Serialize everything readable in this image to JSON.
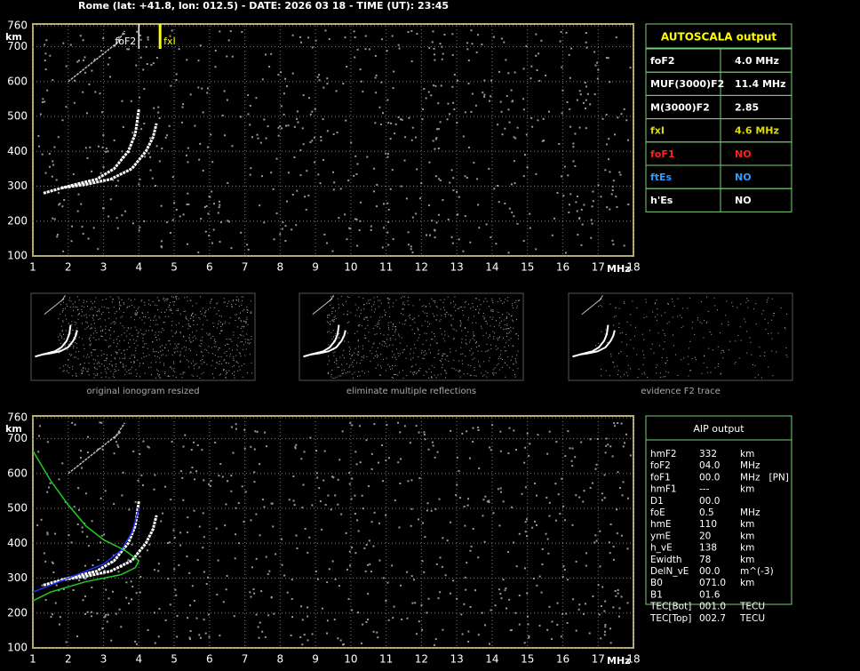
{
  "header": "Rome (lat: +41.8, lon: 012.5) - DATE: 2026 03 18 - TIME (UT): 23:45",
  "plots": [
    {
      "xlim": [
        1,
        18
      ],
      "ylim": [
        100,
        760
      ],
      "xticks": [
        1,
        2,
        3,
        4,
        5,
        6,
        7,
        8,
        9,
        10,
        11,
        12,
        13,
        14,
        15,
        16,
        17,
        18
      ],
      "yticks": [
        100,
        200,
        300,
        400,
        500,
        600,
        700,
        760
      ],
      "y_label": "km",
      "x_label": "MHz",
      "markers": [
        {
          "label": "foF2",
          "x": 4.0,
          "color": "#ffffff"
        },
        {
          "label": "fxI",
          "x": 4.6,
          "color": "#ffff00"
        }
      ],
      "traces": [
        {
          "color": "#ffffff",
          "x": [
            1.3,
            2,
            2.8,
            3.3,
            3.7,
            3.9,
            4.0
          ],
          "y": [
            280,
            300,
            320,
            350,
            400,
            450,
            520
          ]
        },
        {
          "color": "#ffffff",
          "x": [
            1.8,
            2.5,
            3.2,
            3.8,
            4.2,
            4.4,
            4.5
          ],
          "y": [
            295,
            305,
            320,
            350,
            400,
            440,
            480
          ]
        },
        {
          "color": "#bbbbbb",
          "x": [
            2,
            2.5,
            3,
            3.5
          ],
          "y": [
            600,
            640,
            680,
            720
          ]
        },
        {
          "color": "#bbbbbb",
          "x": [
            3.3,
            3.6
          ],
          "y": [
            700,
            745
          ]
        }
      ]
    },
    {
      "xlim": [
        1,
        18
      ],
      "ylim": [
        100,
        760
      ],
      "xticks": [
        1,
        2,
        3,
        4,
        5,
        6,
        7,
        8,
        9,
        10,
        11,
        12,
        13,
        14,
        15,
        16,
        17,
        18
      ],
      "yticks": [
        100,
        200,
        300,
        400,
        500,
        600,
        700,
        760
      ],
      "y_label": "km",
      "x_label": "MHz",
      "markers": [],
      "traces": [
        {
          "color": "#ffffff",
          "x": [
            1.3,
            2,
            2.8,
            3.3,
            3.7,
            3.9,
            4.0
          ],
          "y": [
            280,
            300,
            320,
            350,
            400,
            450,
            520
          ]
        },
        {
          "color": "#ffffff",
          "x": [
            1.8,
            2.5,
            3.2,
            3.8,
            4.2,
            4.4,
            4.5
          ],
          "y": [
            295,
            305,
            320,
            350,
            400,
            440,
            480
          ]
        },
        {
          "color": "#bbbbbb",
          "x": [
            2,
            2.5,
            3,
            3.5
          ],
          "y": [
            600,
            640,
            680,
            720
          ]
        },
        {
          "color": "#bbbbbb",
          "x": [
            3.3,
            3.6
          ],
          "y": [
            700,
            745
          ]
        },
        {
          "color": "#2233ff",
          "x": [
            1,
            2,
            3,
            3.5,
            3.8,
            4.0
          ],
          "y": [
            260,
            300,
            340,
            380,
            430,
            500
          ]
        },
        {
          "color": "#22cc22",
          "x": [
            1,
            1.5,
            2,
            2.5,
            3,
            3.6,
            4,
            3.9,
            3.5,
            2.5,
            1.5,
            1
          ],
          "y": [
            665,
            580,
            510,
            450,
            410,
            380,
            350,
            330,
            310,
            290,
            260,
            235
          ]
        }
      ]
    }
  ],
  "thumbnails": [
    {
      "caption": "original ionogram resized"
    },
    {
      "caption": "eliminate multiple reflections"
    },
    {
      "caption": "evidence F2 trace"
    }
  ],
  "autoscala": {
    "title": "AUTOSCALA output",
    "rows": [
      {
        "name": "foF2",
        "value": "4.0 MHz",
        "color": "#ffffff"
      },
      {
        "name": "MUF(3000)F2",
        "value": "11.4 MHz",
        "color": "#ffffff"
      },
      {
        "name": "M(3000)F2",
        "value": "2.85",
        "color": "#ffffff"
      },
      {
        "name": "fxI",
        "value": "4.6 MHz",
        "color": "#dddd00"
      },
      {
        "name": "foF1",
        "value": "NO",
        "color": "#ff2020"
      },
      {
        "name": "ftEs",
        "value": "NO",
        "color": "#3399ff"
      },
      {
        "name": "h'Es",
        "value": "NO",
        "color": "#ffffff"
      }
    ]
  },
  "aip": {
    "title": "AIP output",
    "rows": [
      [
        "hmF2",
        "332",
        "km"
      ],
      [
        "foF2",
        "04.0",
        "MHz"
      ],
      [
        "foF1",
        "00.0",
        "MHz   [PN]"
      ],
      [
        "hmF1",
        "---",
        "km"
      ],
      [
        "D1",
        "00.0"
      ],
      [
        "foE",
        "0.5",
        "MHz"
      ],
      [
        "hmE",
        "110",
        "km"
      ],
      [
        "ymE",
        "20",
        "km"
      ],
      [
        "h_vE",
        "138",
        "km"
      ],
      [
        "Ewidth",
        "78",
        "km"
      ],
      [
        "DelN_vE",
        "00.0",
        "m^(-3)"
      ],
      [
        "B0",
        "071.0",
        "km"
      ],
      [
        "B1",
        "01.6"
      ],
      [
        "TEC[Bot]",
        "001.0",
        "TECU"
      ],
      [
        "TEC[Top]",
        "002.7",
        "TECU"
      ]
    ]
  }
}
